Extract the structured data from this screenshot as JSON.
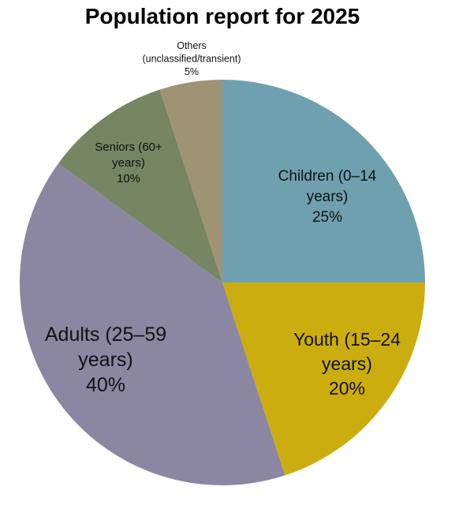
{
  "chart_data": {
    "type": "pie",
    "title": "Population report for 2025",
    "slices": [
      {
        "name": "Children (0–14 years)",
        "label_lines": [
          "Children (0–14",
          "years)"
        ],
        "value": 25,
        "value_label": "25%",
        "color": "#6fa0b0"
      },
      {
        "name": "Youth (15–24 years)",
        "label_lines": [
          "Youth (15–24",
          "years)"
        ],
        "value": 20,
        "value_label": "20%",
        "color": "#ccad0f"
      },
      {
        "name": "Adults (25–59 years)",
        "label_lines": [
          "Adults (25–59",
          "years)"
        ],
        "value": 40,
        "value_label": "40%",
        "color": "#8b87a2"
      },
      {
        "name": "Seniors (60+ years)",
        "label_lines": [
          "Seniors (60+",
          "years)"
        ],
        "value": 10,
        "value_label": "10%",
        "color": "#768562"
      },
      {
        "name": "Others (unclassified/transient)",
        "label_lines": [
          "Others",
          "(unclassified/transient)"
        ],
        "value": 5,
        "value_label": "5%",
        "color": "#a09275"
      }
    ],
    "start_angle": "12 o'clock",
    "direction": "clockwise",
    "legend": "none"
  }
}
